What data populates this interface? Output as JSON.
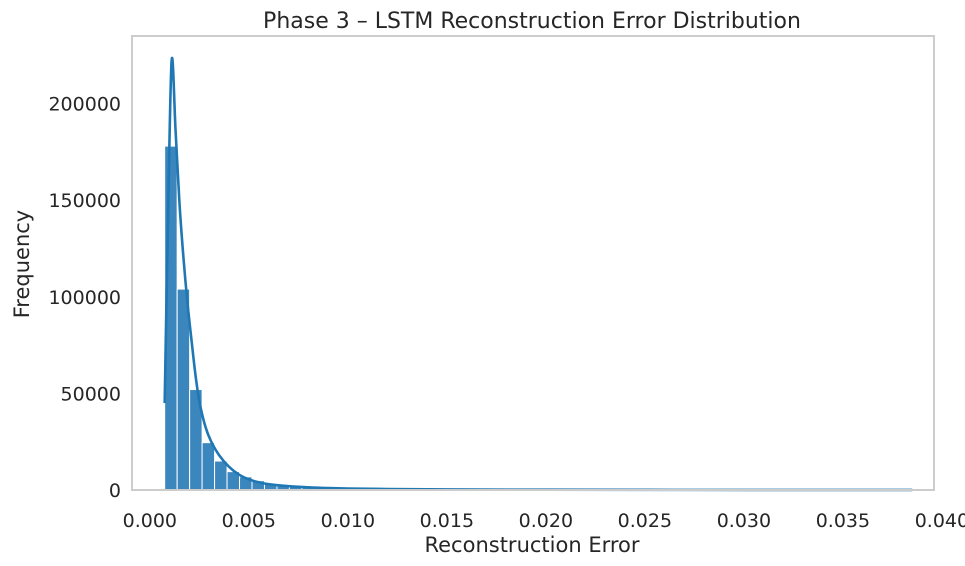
{
  "chart_data": {
    "type": "bar",
    "title": "Phase 3 – LSTM Reconstruction Error Distribution",
    "xlabel": "Reconstruction Error",
    "ylabel": "Frequency",
    "xlim": [
      -0.0009,
      0.0396
    ],
    "ylim": [
      0,
      235000
    ],
    "xticks": [
      0.0,
      0.005,
      0.01,
      0.015,
      0.02,
      0.025,
      0.03,
      0.035,
      0.04
    ],
    "xtick_labels": [
      "0.000",
      "0.005",
      "0.010",
      "0.015",
      "0.020",
      "0.025",
      "0.030",
      "0.035",
      "0.040"
    ],
    "yticks": [
      0,
      50000,
      100000,
      150000,
      200000
    ],
    "ytick_labels": [
      "0",
      "50000",
      "100000",
      "150000",
      "200000"
    ],
    "bin_start": 0.00075,
    "bin_width": 0.00063,
    "values": [
      178000,
      104000,
      52000,
      24500,
      15000,
      9500,
      6800,
      4800,
      3300,
      2500,
      1900,
      1500,
      1200,
      950,
      800,
      650,
      550,
      470,
      400,
      350,
      300,
      260,
      230,
      200,
      180,
      160,
      140,
      125,
      110,
      100,
      90,
      80,
      72,
      65,
      58,
      52,
      47,
      42,
      38,
      35,
      32,
      29,
      26,
      24,
      22,
      20,
      18,
      16,
      15,
      14,
      13,
      12,
      11,
      10,
      9,
      8,
      8,
      7,
      7,
      6
    ],
    "kde": {
      "x": [
        0.00075,
        0.0009,
        0.0011,
        0.0013,
        0.0015,
        0.0017,
        0.0019,
        0.0021,
        0.0023,
        0.0025,
        0.0028,
        0.0031,
        0.0035,
        0.004,
        0.0045,
        0.005,
        0.0055,
        0.006,
        0.007,
        0.008,
        0.009,
        0.01,
        0.012,
        0.015,
        0.02,
        0.025,
        0.03,
        0.0385
      ],
      "y": [
        45000,
        130000,
        222000,
        186000,
        148000,
        120000,
        97000,
        78000,
        60000,
        46000,
        33000,
        25000,
        18000,
        12000,
        8000,
        5500,
        4000,
        3000,
        2000,
        1400,
        1000,
        750,
        500,
        300,
        150,
        80,
        40,
        15
      ]
    },
    "grid": false,
    "legend": "none",
    "colors": {
      "bar_fill": "#2f7fb9",
      "bar_edge": "#ffffff",
      "kde_line": "#1f77b4",
      "spine": "#cccccc",
      "text": "#262626"
    }
  }
}
